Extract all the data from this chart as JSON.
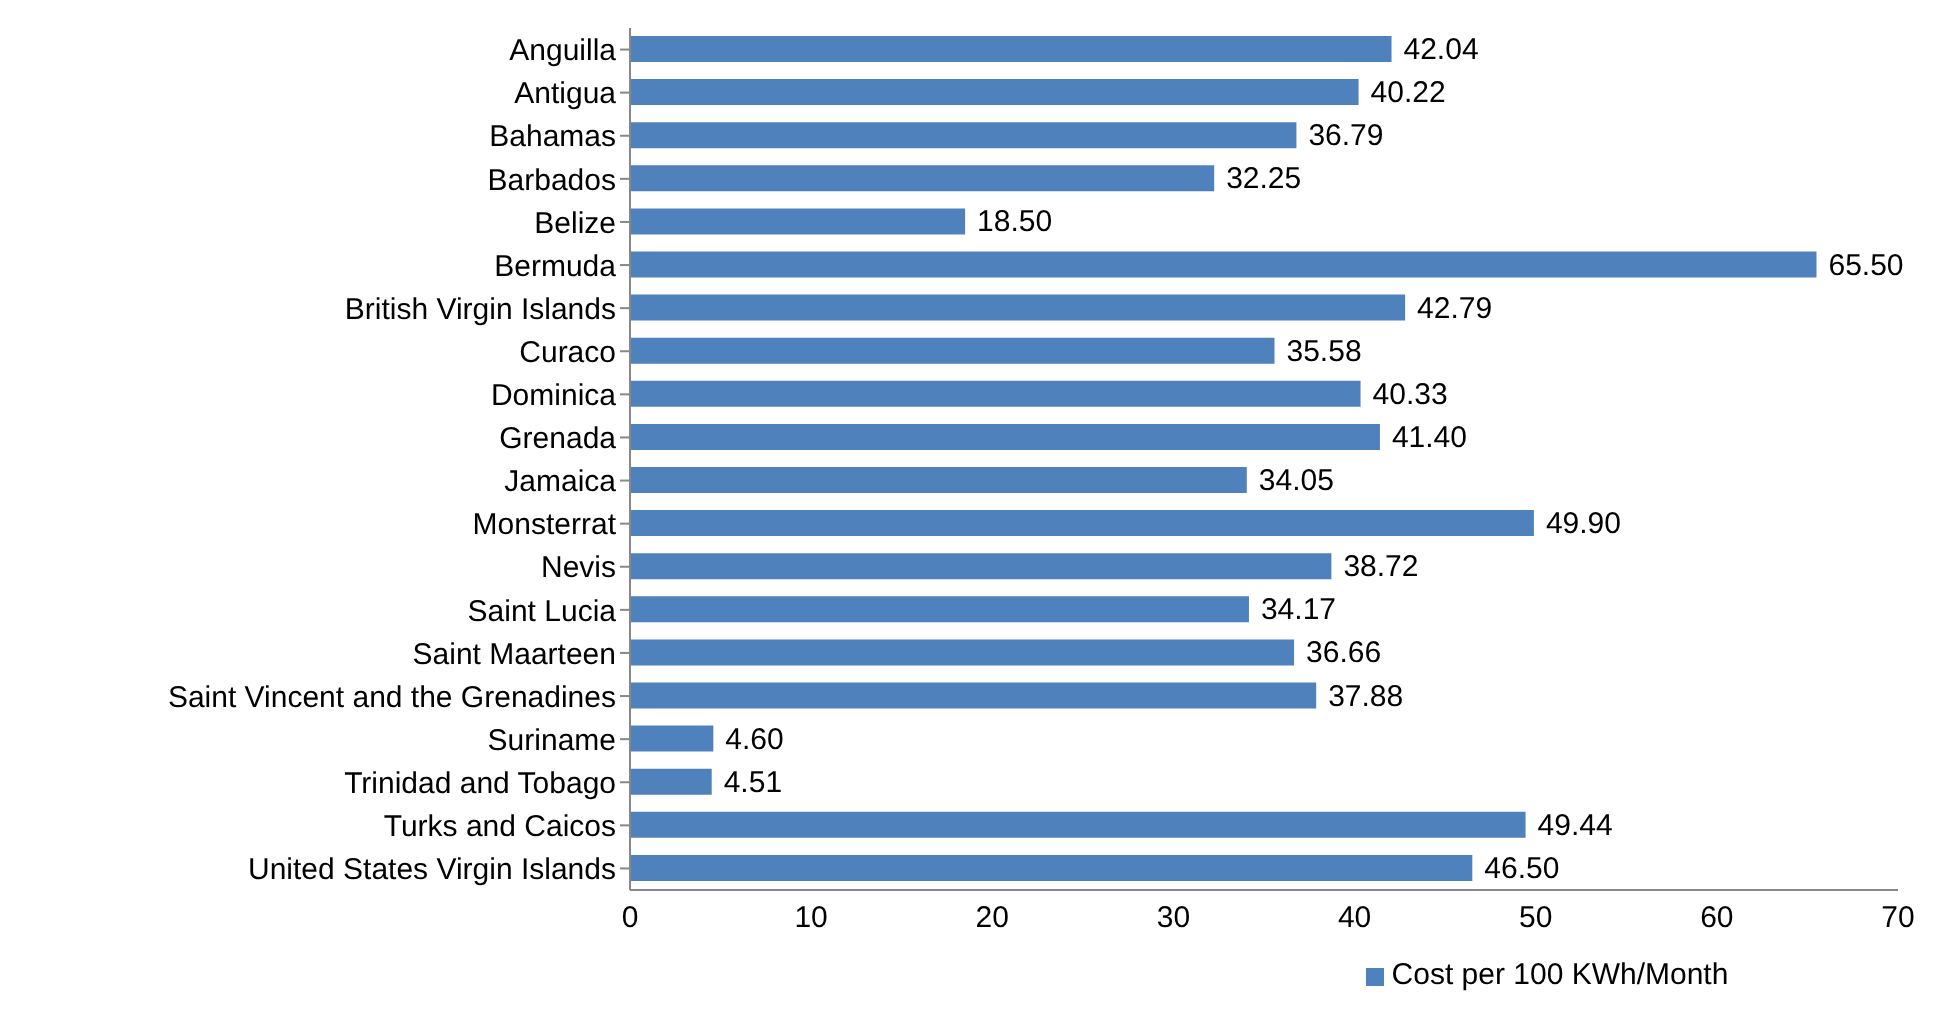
{
  "chart_data": {
    "type": "bar",
    "orientation": "horizontal",
    "categories": [
      "Anguilla",
      "Antigua",
      "Bahamas",
      "Barbados",
      "Belize",
      "Bermuda",
      "British Virgin Islands",
      "Curaco",
      "Dominica",
      "Grenada",
      "Jamaica",
      "Monsterrat",
      "Nevis",
      "Saint Lucia",
      "Saint Maarteen",
      "Saint Vincent and the Grenadines",
      "Suriname",
      "Trinidad and Tobago",
      "Turks and Caicos",
      "United States Virgin Islands"
    ],
    "series": [
      {
        "name": "Cost per 100 KWh/Month",
        "color": "#4f81bd",
        "values": [
          42.04,
          40.22,
          36.79,
          32.25,
          18.5,
          65.5,
          42.79,
          35.58,
          40.33,
          41.4,
          34.05,
          49.9,
          38.72,
          34.17,
          36.66,
          37.88,
          4.6,
          4.51,
          49.44,
          46.5
        ],
        "value_labels": [
          "42.04",
          "40.22",
          "36.79",
          "32.25",
          "18.50",
          "65.50",
          "42.79",
          "35.58",
          "40.33",
          "41.40",
          "34.05",
          "49.90",
          "38.72",
          "34.17",
          "36.66",
          "37.88",
          "4.60",
          "4.51",
          "49.44",
          "46.50"
        ]
      }
    ],
    "xlim": [
      0,
      70
    ],
    "xticks": [
      0,
      10,
      20,
      30,
      40,
      50,
      60,
      70
    ],
    "grid": false,
    "legend": "bottom"
  }
}
